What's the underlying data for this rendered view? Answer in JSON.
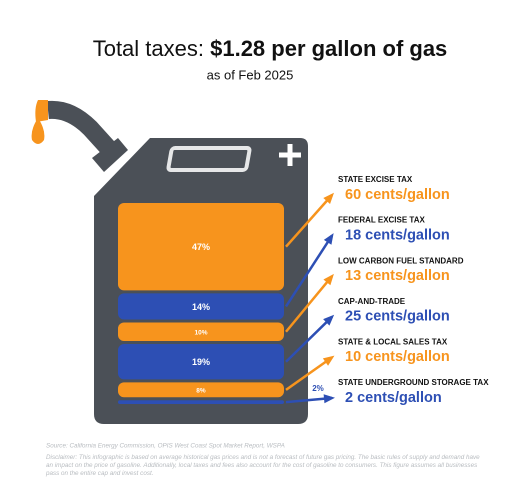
{
  "chart_data": {
    "type": "stacked-bar",
    "title": "Total taxes:",
    "title_emphasis": "$1.28 per gallon of gas",
    "subtitle": "as of Feb 2025",
    "categories": [
      "STATE EXCISE TAX",
      "FEDERAL EXCISE TAX",
      "LOW CARBON FUEL STANDARD",
      "CAP-AND-TRADE",
      "STATE & LOCAL SALES TAX",
      "STATE UNDERGROUND STORAGE TAX"
    ],
    "values": [
      47,
      14,
      10,
      19,
      8,
      2
    ],
    "value_labels": [
      "47%",
      "14%",
      "10%",
      "19%",
      "8%",
      "2%"
    ],
    "cents": [
      60,
      18,
      13,
      25,
      10,
      2
    ],
    "cents_labels": [
      "60 cents/gallon",
      "18 cents/gallon",
      "13 cents/gallon",
      "25 cents/gallon",
      "10 cents/gallon",
      "2 cents/gallon"
    ],
    "colors": [
      "#f7941d",
      "#2d4fb4",
      "#f7941d",
      "#2d4fb4",
      "#f7941d",
      "#2d4fb4"
    ],
    "source": "Source: California Energy Commission, OPIS West Coast Spot Market Report, WSPA",
    "disclaimer": "Disclaimer: This infographic is based on average historical gas prices and is not a forecast of future gas pricing. The basic rules of supply and demand have an impact on the price of gasoline. Additionally, local taxes and fees also account for the cost of gasoline to consumers. This figure assumes all businesses pass on the entire cap and invest cost."
  }
}
